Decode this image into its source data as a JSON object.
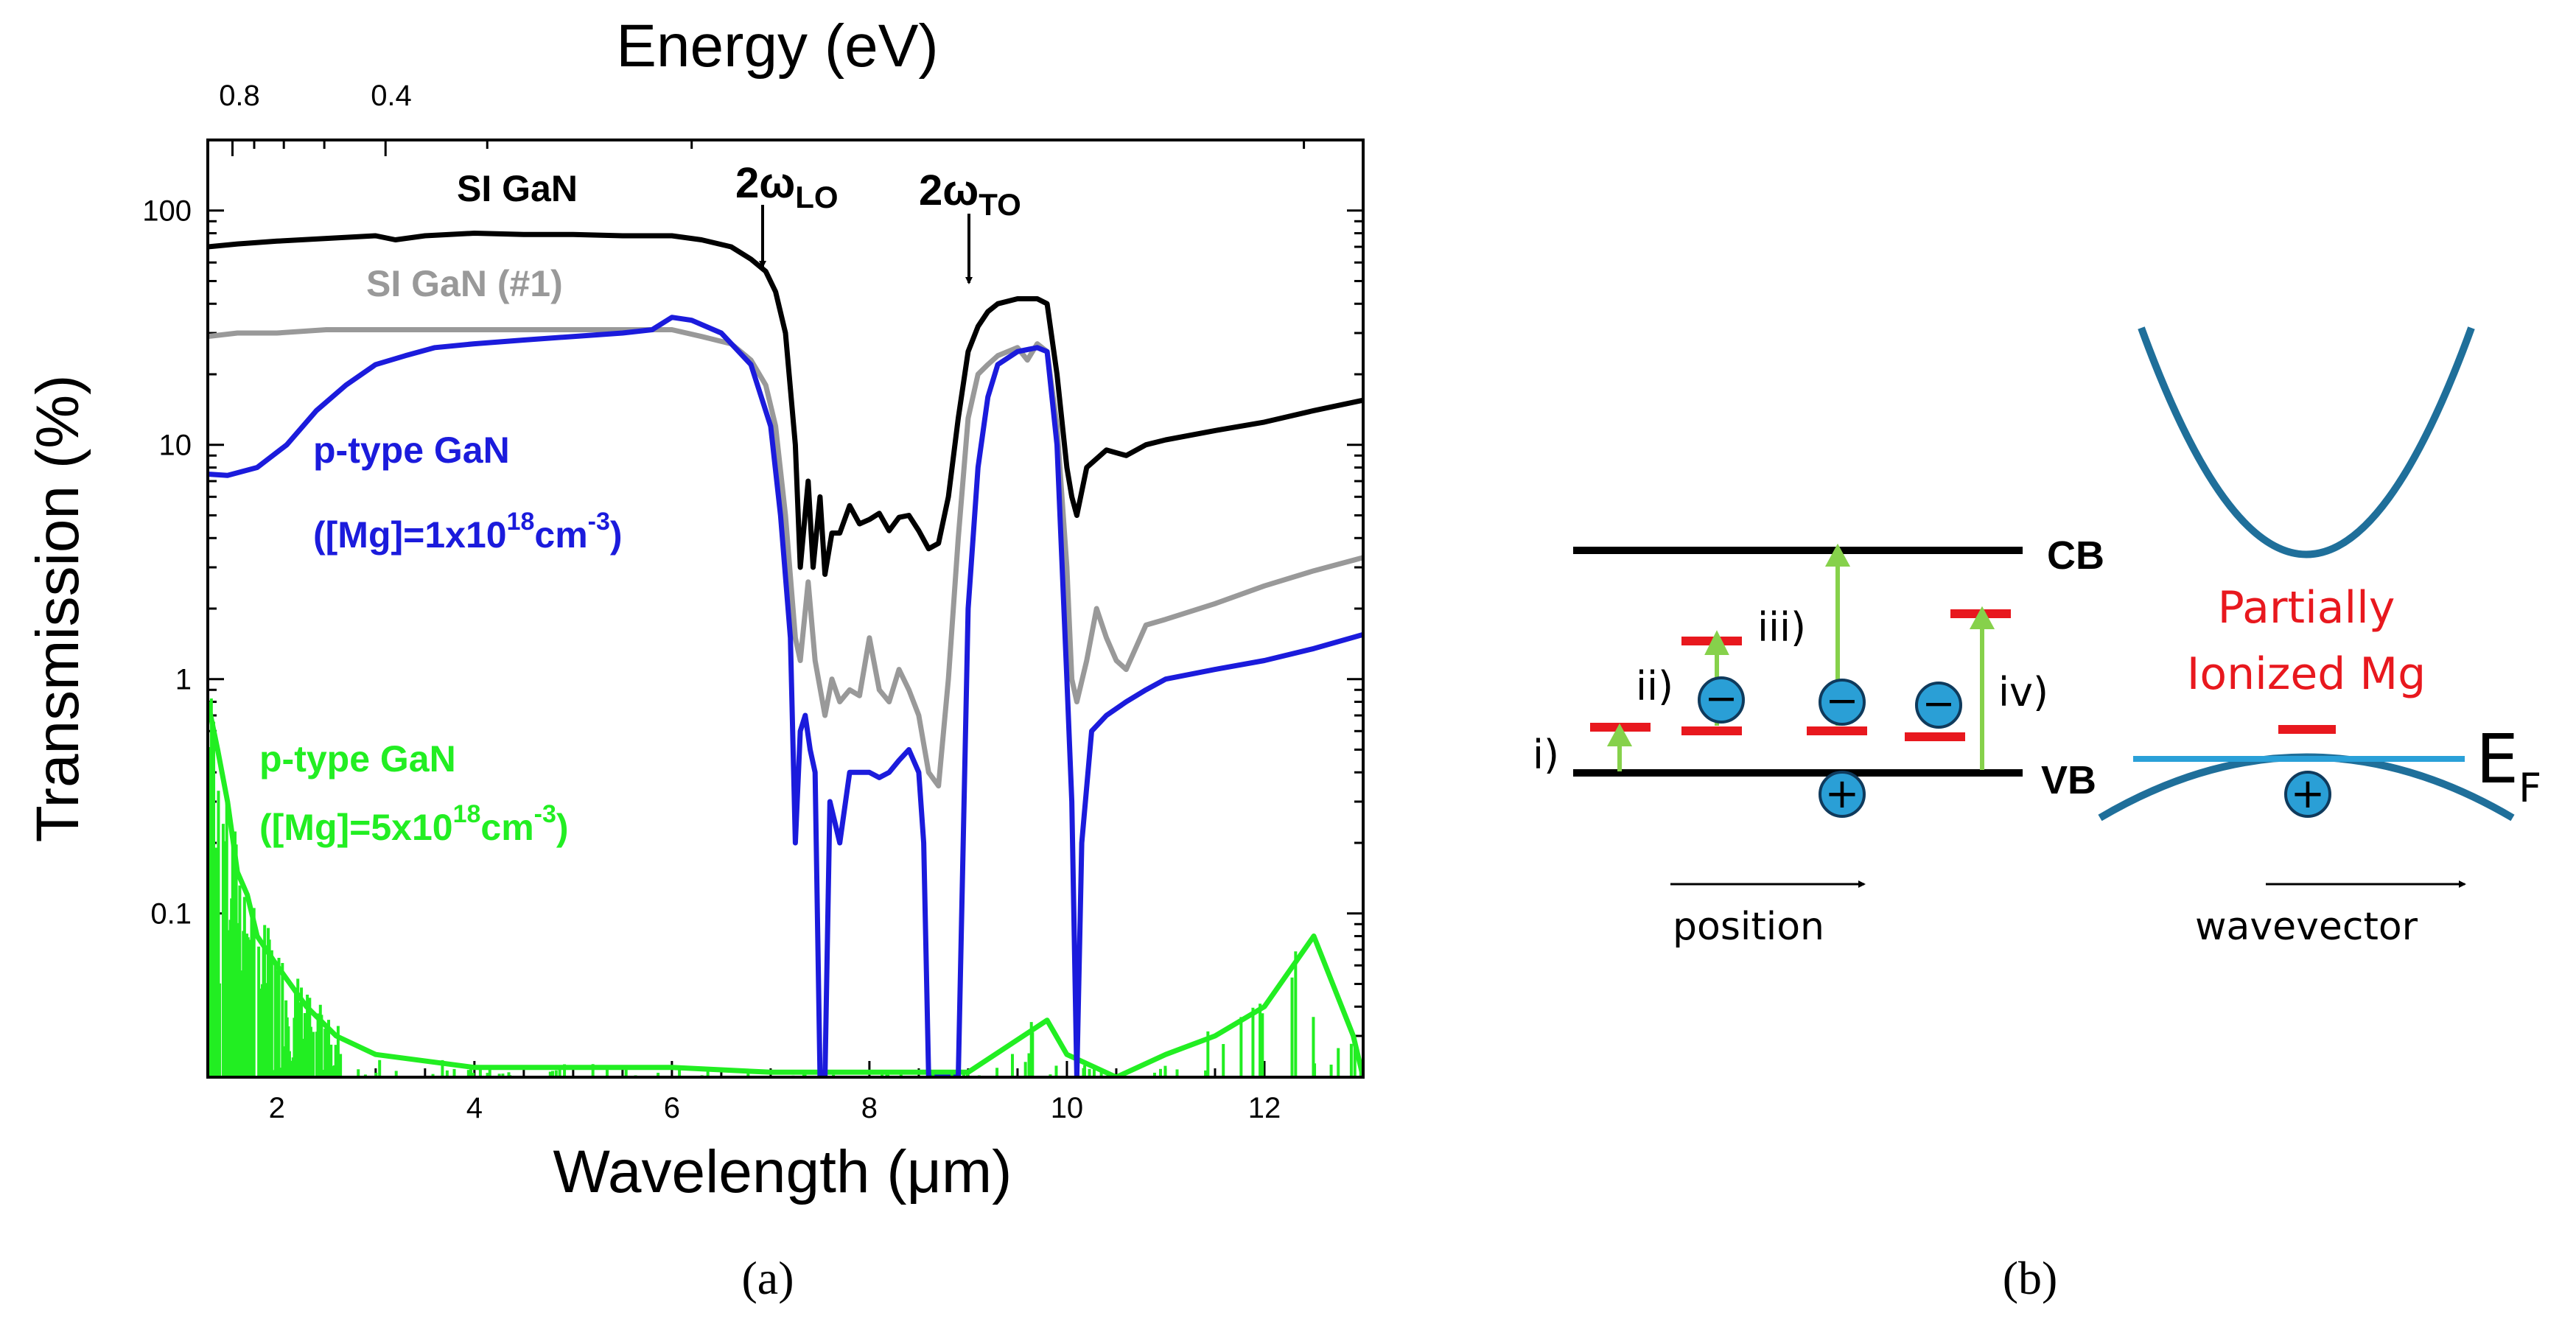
{
  "panel_a": {
    "caption": "(a)",
    "top_axis_title": "Energy (eV)",
    "top_ticks": [
      "0.8",
      "0.4"
    ],
    "x_axis_title": "Wavelength (μm)",
    "y_axis_title": "Transmission (%)",
    "annotations": {
      "lo_main": "2ω",
      "lo_sub": "LO",
      "to_main": "2ω",
      "to_sub": "TO"
    },
    "legend": {
      "si_gan": "SI GaN",
      "si_gan_1": "SI GaN (#1)",
      "p_low_line1": "p-type GaN",
      "p_low_line2_a": "([Mg]=1x10",
      "p_low_line2_sup1": "18",
      "p_low_line2_b": "cm",
      "p_low_line2_sup2": "-3",
      "p_low_line2_c": ")",
      "p_high_line1": "p-type GaN",
      "p_high_line2_a": "([Mg]=5x10",
      "p_high_line2_sup1": "18",
      "p_high_line2_b": "cm",
      "p_high_line2_sup2": "-3",
      "p_high_line2_c": ")"
    }
  },
  "panel_b": {
    "caption": "(b)",
    "cb": "CB",
    "vb": "VB",
    "labels": {
      "i": "i)",
      "ii": "ii)",
      "iii": "iii)",
      "iv": "iv)"
    },
    "position": "position",
    "wavevector": "wavevector",
    "partial_line1": "Partially",
    "partial_line2": "Ionized Mg",
    "ef_main": "E",
    "ef_sub": "F",
    "minus": "−",
    "plus": "+"
  },
  "chart_data": {
    "type": "line",
    "title": "",
    "xlabel": "Wavelength (μm)",
    "ylabel": "Transmission (%)",
    "top_xlabel": "Energy (eV)",
    "xlim": [
      1.3,
      13
    ],
    "ylim": [
      0.02,
      200
    ],
    "yscale": "log",
    "x_ticks": [
      2,
      4,
      6,
      8,
      10,
      12
    ],
    "y_ticks": [
      0.1,
      1,
      10,
      100
    ],
    "y_tick_labels": [
      "0.1",
      "1",
      "10",
      "100"
    ],
    "top_ticks": [
      {
        "label": "0.8",
        "wavelength": 1.55
      },
      {
        "label": "0.4",
        "wavelength": 3.1
      }
    ],
    "series": [
      {
        "name": "SI GaN",
        "color": "#000000",
        "x": [
          1.3,
          1.6,
          2,
          2.5,
          3,
          3.2,
          3.5,
          4,
          4.5,
          5,
          5.5,
          6,
          6.3,
          6.6,
          6.8,
          6.95,
          7.05,
          7.15,
          7.25,
          7.3,
          7.38,
          7.43,
          7.5,
          7.55,
          7.62,
          7.7,
          7.8,
          7.9,
          8,
          8.1,
          8.2,
          8.3,
          8.4,
          8.5,
          8.6,
          8.7,
          8.8,
          8.9,
          9,
          9.1,
          9.2,
          9.3,
          9.5,
          9.7,
          9.8,
          9.9,
          10,
          10.05,
          10.1,
          10.2,
          10.4,
          10.6,
          10.8,
          11,
          11.5,
          12,
          12.5,
          13
        ],
        "y": [
          70,
          72,
          74,
          76,
          78,
          75,
          78,
          80,
          79,
          79,
          78,
          78,
          75,
          70,
          62,
          55,
          45,
          30,
          10,
          3,
          7,
          3,
          6,
          2.8,
          4.2,
          4.2,
          5.5,
          4.6,
          4.8,
          5.1,
          4.3,
          4.9,
          5.0,
          4.3,
          3.6,
          3.8,
          6,
          13,
          25,
          32,
          37,
          40,
          42,
          42,
          40,
          20,
          8,
          6,
          5,
          8,
          9.5,
          9,
          10,
          10.5,
          11.5,
          12.5,
          14,
          15.5
        ]
      },
      {
        "name": "SI GaN (#1)",
        "color": "#999999",
        "x": [
          1.3,
          1.6,
          2,
          2.5,
          3,
          3.5,
          4,
          4.5,
          5,
          5.5,
          6,
          6.3,
          6.6,
          6.8,
          6.95,
          7.05,
          7.15,
          7.25,
          7.3,
          7.38,
          7.45,
          7.55,
          7.62,
          7.7,
          7.8,
          7.9,
          8,
          8.1,
          8.2,
          8.3,
          8.4,
          8.5,
          8.6,
          8.7,
          8.8,
          8.9,
          9,
          9.1,
          9.2,
          9.3,
          9.5,
          9.6,
          9.7,
          9.8,
          9.9,
          10,
          10.05,
          10.1,
          10.2,
          10.3,
          10.4,
          10.5,
          10.6,
          10.8,
          11,
          11.5,
          12,
          12.5,
          13
        ],
        "y": [
          29,
          30,
          30,
          31,
          31,
          31,
          31,
          31,
          31,
          31,
          31,
          29,
          27,
          23,
          18,
          12,
          5,
          1.5,
          1.2,
          2.6,
          1.2,
          0.7,
          1.0,
          0.8,
          0.9,
          0.85,
          1.5,
          0.9,
          0.8,
          1.1,
          0.9,
          0.7,
          0.4,
          0.35,
          1.0,
          4,
          13,
          20,
          22,
          24,
          26,
          23,
          27,
          25,
          12,
          3,
          1.0,
          0.8,
          1.2,
          2.0,
          1.5,
          1.2,
          1.1,
          1.7,
          1.8,
          2.1,
          2.5,
          2.9,
          3.3
        ]
      },
      {
        "name": "p-type GaN ([Mg]=1x10^18 cm^-3)",
        "color": "#1b1bdc",
        "x": [
          1.3,
          1.5,
          1.8,
          2.1,
          2.4,
          2.7,
          3,
          3.3,
          3.6,
          4,
          4.5,
          5,
          5.5,
          5.8,
          6,
          6.2,
          6.5,
          6.8,
          7,
          7.1,
          7.2,
          7.25,
          7.3,
          7.35,
          7.4,
          7.45,
          7.5,
          7.55,
          7.6,
          7.7,
          7.8,
          7.9,
          8,
          8.1,
          8.2,
          8.3,
          8.4,
          8.5,
          8.55,
          8.6,
          8.65,
          8.7,
          8.8,
          8.85,
          8.9,
          8.95,
          9,
          9.1,
          9.2,
          9.3,
          9.5,
          9.7,
          9.8,
          9.9,
          10,
          10.05,
          10.1,
          10.15,
          10.25,
          10.4,
          10.6,
          10.8,
          11,
          11.5,
          12,
          12.5,
          13
        ],
        "y": [
          7.5,
          7.4,
          8,
          10,
          14,
          18,
          22,
          24,
          26,
          27,
          28,
          29,
          30,
          31,
          35,
          34,
          30,
          22,
          12,
          5,
          1.5,
          0.2,
          0.6,
          0.7,
          0.5,
          0.4,
          0.02,
          0.02,
          0.3,
          0.2,
          0.4,
          0.4,
          0.4,
          0.38,
          0.4,
          0.45,
          0.5,
          0.4,
          0.2,
          0.02,
          0.02,
          0.02,
          0.02,
          0.02,
          0.02,
          0.2,
          2,
          8,
          16,
          22,
          25,
          26,
          25,
          10,
          1.0,
          0.3,
          0.02,
          0.2,
          0.6,
          0.7,
          0.8,
          0.9,
          1.0,
          1.1,
          1.2,
          1.35,
          1.55
        ]
      },
      {
        "name": "p-type GaN ([Mg]=5x10^18 cm^-3)",
        "color": "#22ee22",
        "x": [
          1.3,
          1.4,
          1.5,
          1.6,
          1.7,
          1.8,
          2,
          2.3,
          2.6,
          3,
          4,
          5,
          6,
          7,
          8,
          9,
          9.8,
          10,
          10.5,
          11,
          11.5,
          12,
          12.5,
          12.9,
          13
        ],
        "y": [
          0.8,
          0.5,
          0.3,
          0.15,
          0.12,
          0.08,
          0.06,
          0.04,
          0.03,
          0.025,
          0.022,
          0.022,
          0.022,
          0.021,
          0.021,
          0.021,
          0.035,
          0.025,
          0.02,
          0.025,
          0.03,
          0.04,
          0.08,
          0.03,
          0.02
        ]
      }
    ]
  }
}
